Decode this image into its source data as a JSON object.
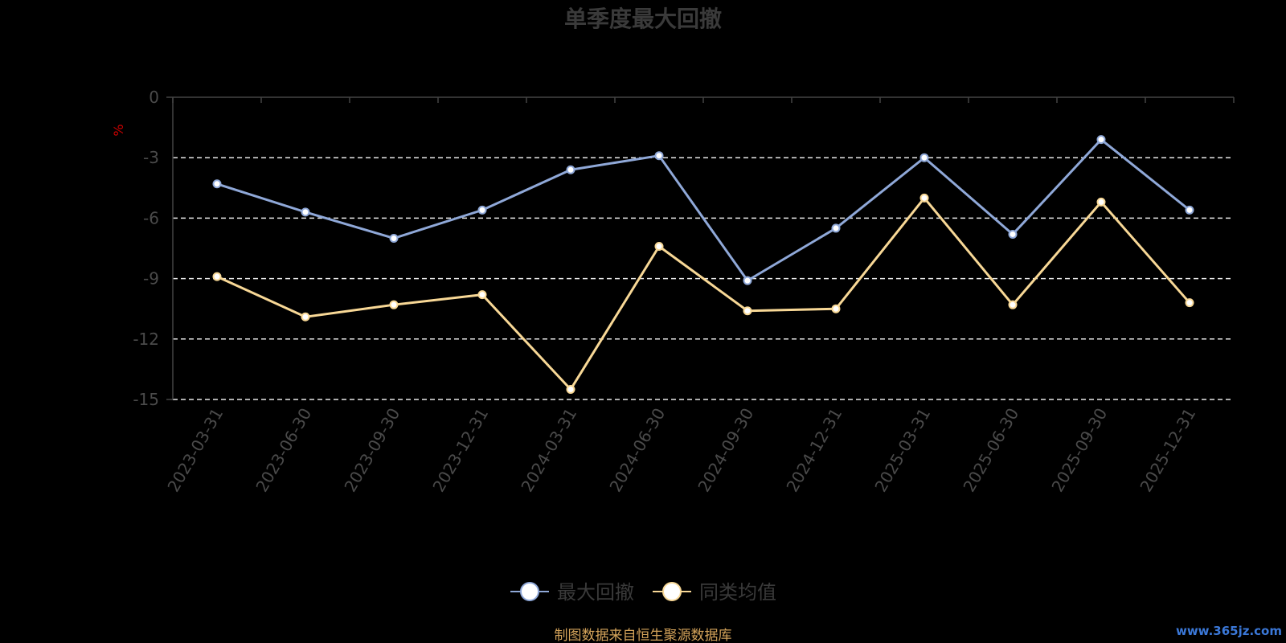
{
  "chart_data": {
    "type": "line",
    "title": "单季度最大回撤",
    "ylabel": "%",
    "ylim": [
      -15,
      0
    ],
    "yticks": [
      0,
      -3,
      -6,
      -9,
      -12,
      -15
    ],
    "grid": "horizontal dashed",
    "legend_position": "bottom-center",
    "categories": [
      "2023-03-31",
      "2023-06-30",
      "2023-09-30",
      "2023-12-31",
      "2024-03-31",
      "2024-06-30",
      "2024-09-30",
      "2024-12-31",
      "2025-03-31",
      "2025-06-30",
      "2025-09-30",
      "2025-12-31"
    ],
    "series": [
      {
        "name": "最大回撤",
        "color": "#8fa8d8",
        "values": [
          -4.3,
          -5.7,
          -7.0,
          -5.6,
          -3.6,
          -2.9,
          -9.1,
          -6.5,
          -3.0,
          -6.8,
          -2.1,
          -5.6
        ]
      },
      {
        "name": "同类均值",
        "color": "#f8d896",
        "values": [
          -8.9,
          -10.9,
          -10.3,
          -9.8,
          -14.5,
          -7.4,
          -10.6,
          -10.5,
          -5.0,
          -10.3,
          -5.2,
          -10.2
        ]
      }
    ]
  },
  "footer": {
    "source": "制图数据来自恒生聚源数据库",
    "watermark": "www.365jz.com"
  }
}
